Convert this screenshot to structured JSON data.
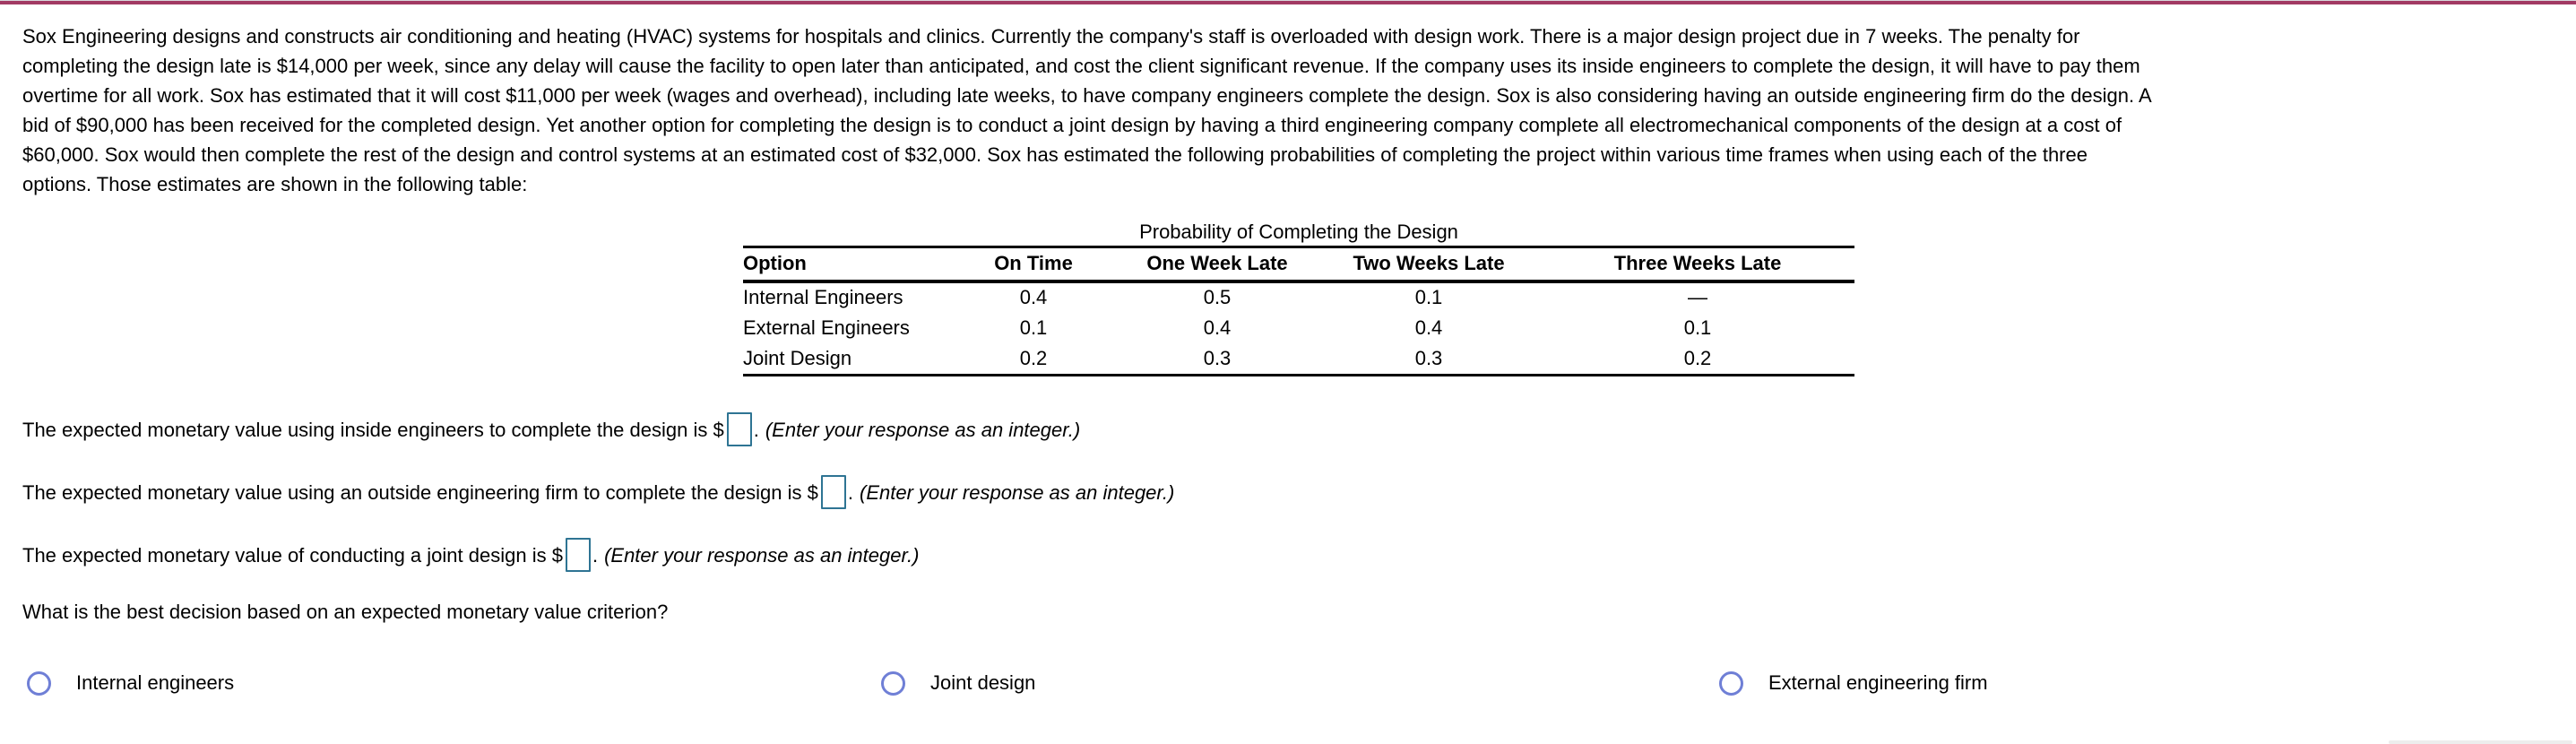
{
  "colors": {
    "accent_bar": "#a23a64",
    "input_border": "#2e7493",
    "radio_ring": "#6f7fd6"
  },
  "problem": {
    "lines": [
      "Sox Engineering designs and constructs air conditioning and heating (HVAC) systems for hospitals and clinics. Currently the company's staff is overloaded with design work. There is a major design project due in 7 weeks. The penalty for",
      "completing the design late is $14,000 per week, since any delay will cause the facility to open later than anticipated, and cost the client significant revenue. If the company uses its inside engineers to complete the design, it will have to pay them",
      "overtime for all work. Sox has estimated that it will cost $11,000 per week (wages and overhead), including late weeks, to have company engineers complete the design. Sox is also considering having an outside engineering firm do the design. A",
      "bid of $90,000 has been received for the completed design. Yet another option for completing the design is to conduct a joint design by having a third engineering company complete all electromechanical components of the design at a cost of",
      "$60,000. Sox would then complete the rest of the design and control systems at an estimated cost of $32,000. Sox has estimated the following probabilities of completing the project within various time frames when using each of the three",
      "options. Those estimates are shown in the following table:"
    ]
  },
  "table": {
    "caption": "Probability of Completing the Design",
    "headers": [
      "Option",
      "On Time",
      "One Week Late",
      "Two Weeks Late",
      "Three Weeks Late"
    ],
    "rows": [
      {
        "option": "Internal Engineers",
        "values": [
          "0.4",
          "0.5",
          "0.1",
          "—"
        ]
      },
      {
        "option": "External Engineers",
        "values": [
          "0.1",
          "0.4",
          "0.4",
          "0.1"
        ]
      },
      {
        "option": "Joint Design",
        "values": [
          "0.2",
          "0.3",
          "0.3",
          "0.2"
        ]
      }
    ]
  },
  "questions": [
    {
      "prefix": "The expected monetary value using inside engineers to complete the design is $",
      "value": "",
      "suffix": ".",
      "hint": "(Enter your response as an integer.)"
    },
    {
      "prefix": "The expected monetary value using an outside engineering firm to complete the design is $",
      "value": "",
      "suffix": ".",
      "hint": "(Enter your response as an integer.)"
    },
    {
      "prefix": "The expected monetary value of conducting a joint design is $",
      "value": "",
      "suffix": ".",
      "hint": "(Enter your response as an integer.)"
    }
  ],
  "mc": {
    "prompt": "What is the best decision based on an expected monetary value criterion?",
    "options": [
      {
        "label": "Internal engineers"
      },
      {
        "label": "Joint design"
      },
      {
        "label": "External engineering firm"
      }
    ]
  }
}
